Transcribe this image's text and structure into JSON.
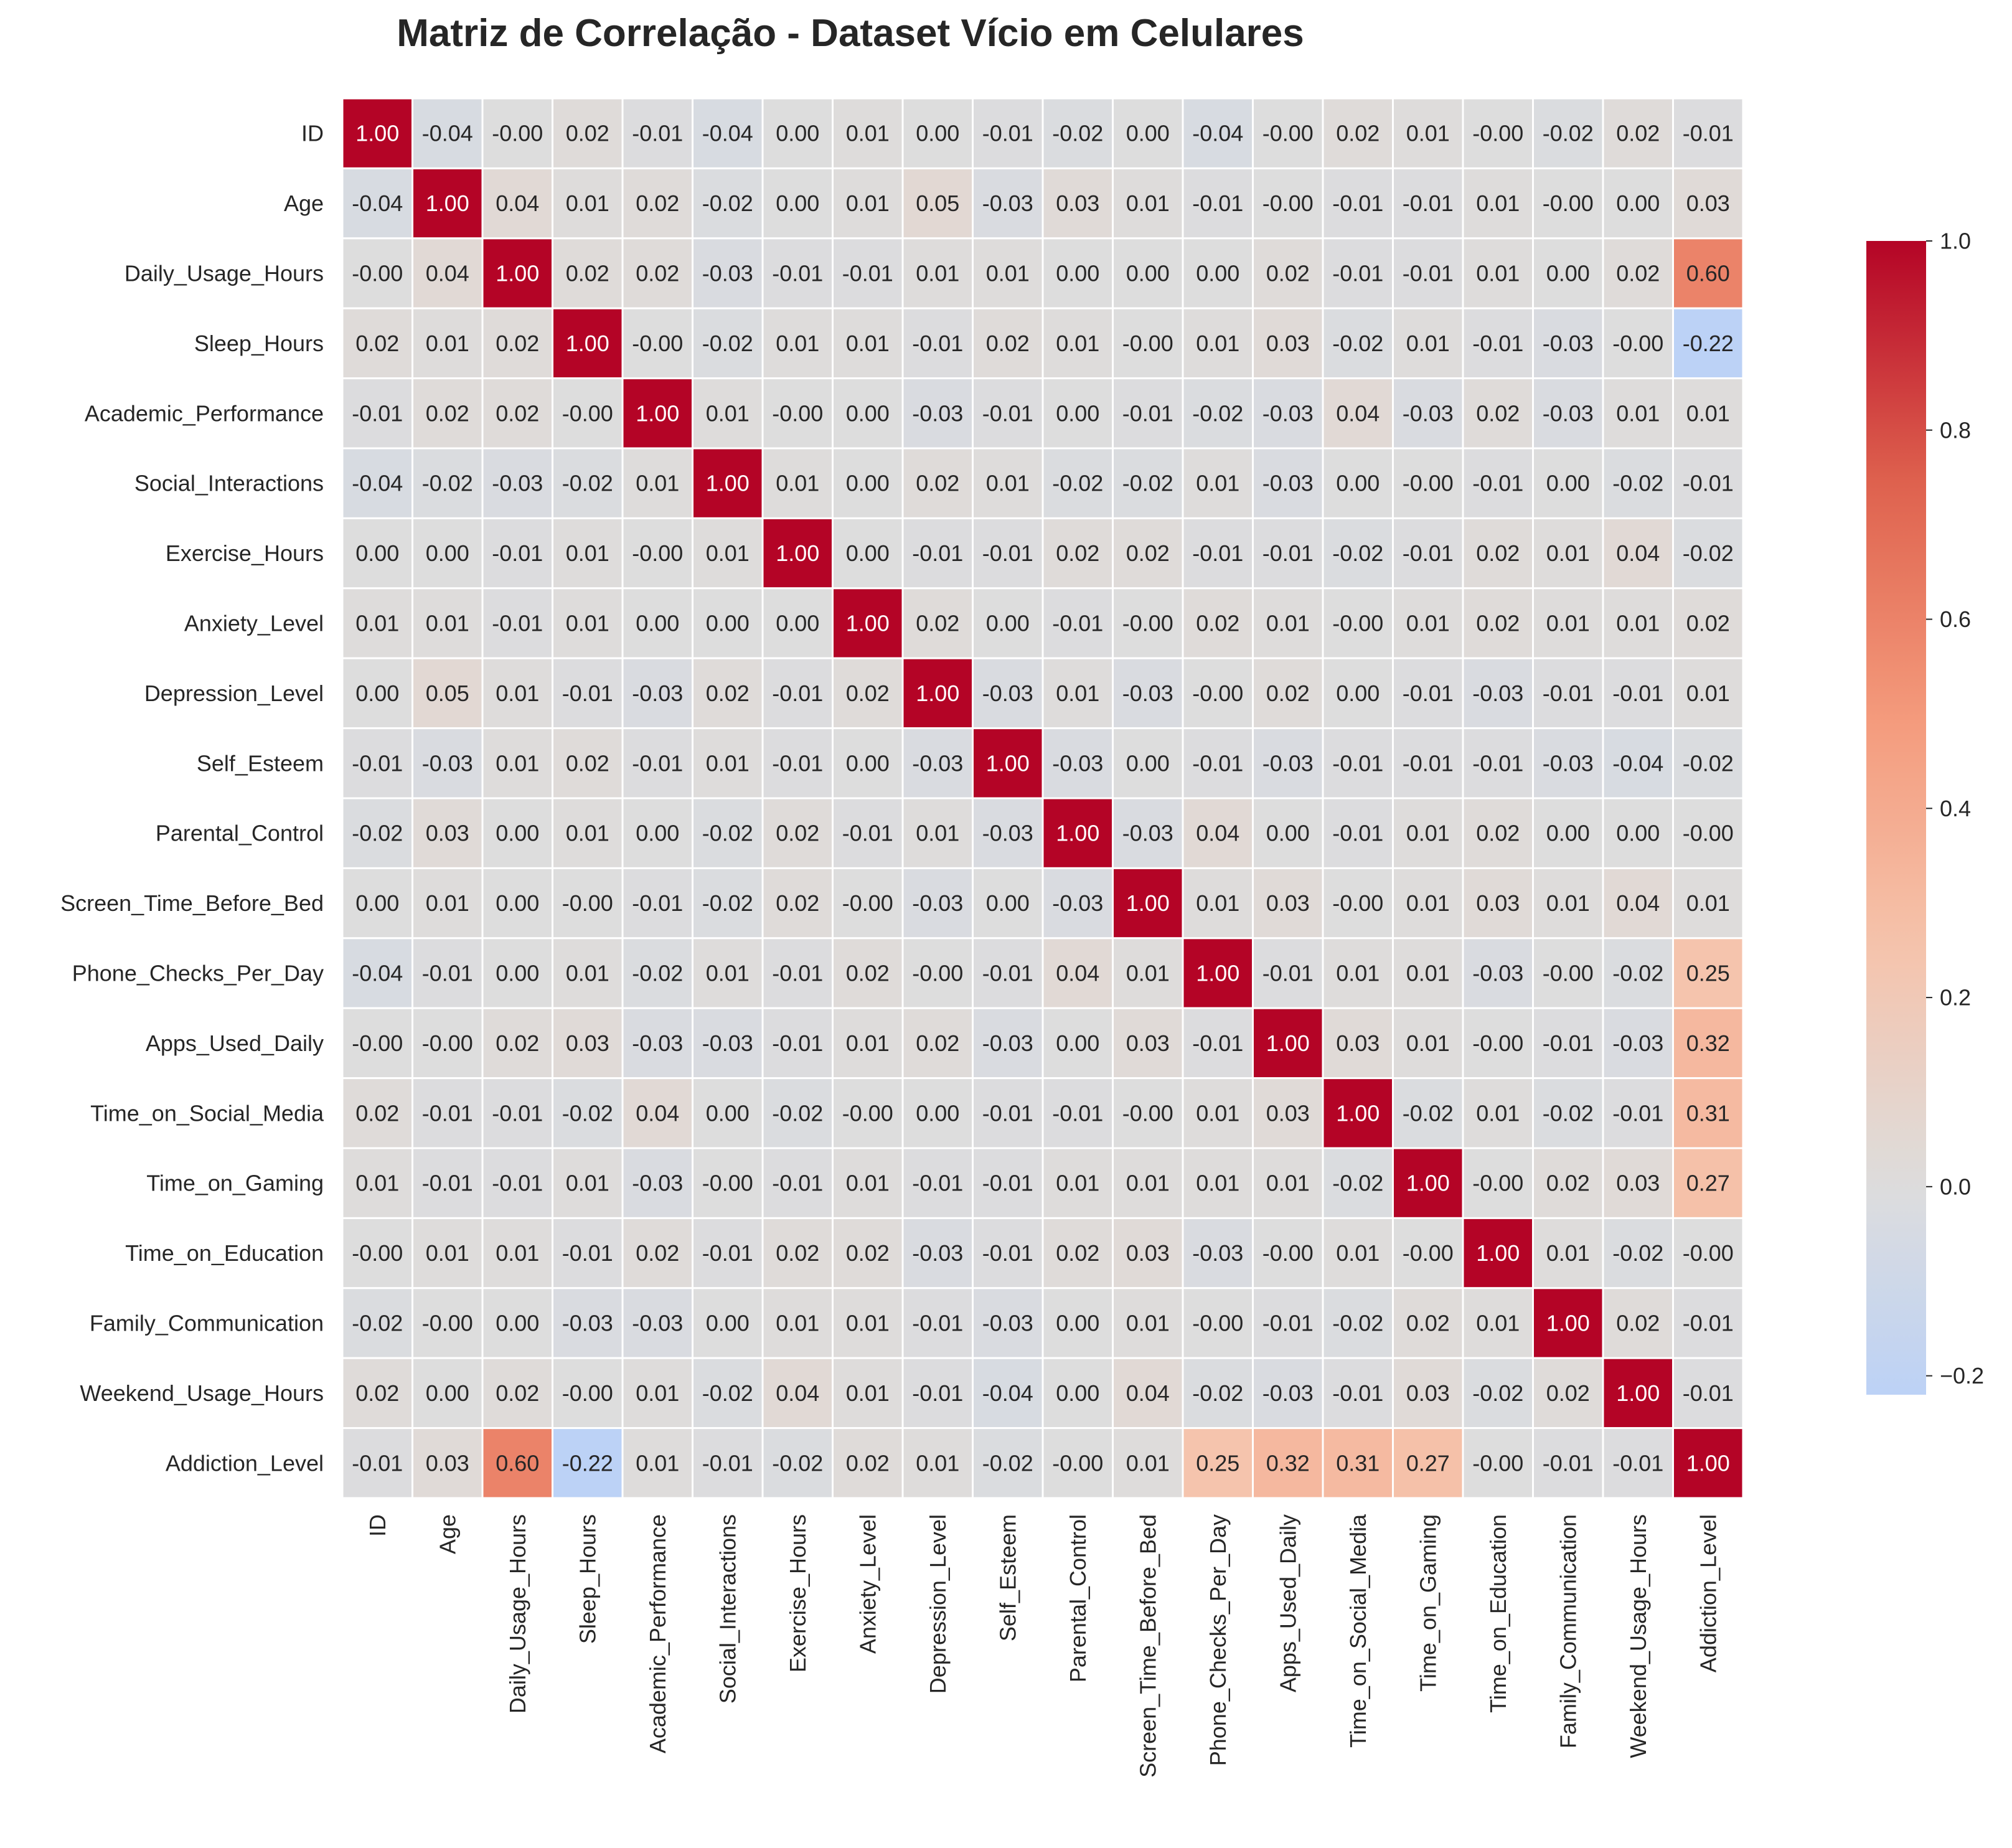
{
  "chart_data": {
    "type": "heatmap",
    "title": "Matriz de Correlação - Dataset Vício em Celulares",
    "variables": [
      "ID",
      "Age",
      "Daily_Usage_Hours",
      "Sleep_Hours",
      "Academic_Performance",
      "Social_Interactions",
      "Exercise_Hours",
      "Anxiety_Level",
      "Depression_Level",
      "Self_Esteem",
      "Parental_Control",
      "Screen_Time_Before_Bed",
      "Phone_Checks_Per_Day",
      "Apps_Used_Daily",
      "Time_on_Social_Media",
      "Time_on_Gaming",
      "Time_on_Education",
      "Family_Communication",
      "Weekend_Usage_Hours",
      "Addiction_Level"
    ],
    "labels": [
      [
        "1.00",
        "-0.04",
        "-0.00",
        "0.02",
        "-0.01",
        "-0.04",
        "0.00",
        "0.01",
        "0.00",
        "-0.01",
        "-0.02",
        "0.00",
        "-0.04",
        "-0.00",
        "0.02",
        "0.01",
        "-0.00",
        "-0.02",
        "0.02",
        "-0.01"
      ],
      [
        "-0.04",
        "1.00",
        "0.04",
        "0.01",
        "0.02",
        "-0.02",
        "0.00",
        "0.01",
        "0.05",
        "-0.03",
        "0.03",
        "0.01",
        "-0.01",
        "-0.00",
        "-0.01",
        "-0.01",
        "0.01",
        "-0.00",
        "0.00",
        "0.03"
      ],
      [
        "-0.00",
        "0.04",
        "1.00",
        "0.02",
        "0.02",
        "-0.03",
        "-0.01",
        "-0.01",
        "0.01",
        "0.01",
        "0.00",
        "0.00",
        "0.00",
        "0.02",
        "-0.01",
        "-0.01",
        "0.01",
        "0.00",
        "0.02",
        "0.60"
      ],
      [
        "0.02",
        "0.01",
        "0.02",
        "1.00",
        "-0.00",
        "-0.02",
        "0.01",
        "0.01",
        "-0.01",
        "0.02",
        "0.01",
        "-0.00",
        "0.01",
        "0.03",
        "-0.02",
        "0.01",
        "-0.01",
        "-0.03",
        "-0.00",
        "-0.22"
      ],
      [
        "-0.01",
        "0.02",
        "0.02",
        "-0.00",
        "1.00",
        "0.01",
        "-0.00",
        "0.00",
        "-0.03",
        "-0.01",
        "0.00",
        "-0.01",
        "-0.02",
        "-0.03",
        "0.04",
        "-0.03",
        "0.02",
        "-0.03",
        "0.01",
        "0.01"
      ],
      [
        "-0.04",
        "-0.02",
        "-0.03",
        "-0.02",
        "0.01",
        "1.00",
        "0.01",
        "0.00",
        "0.02",
        "0.01",
        "-0.02",
        "-0.02",
        "0.01",
        "-0.03",
        "0.00",
        "-0.00",
        "-0.01",
        "0.00",
        "-0.02",
        "-0.01"
      ],
      [
        "0.00",
        "0.00",
        "-0.01",
        "0.01",
        "-0.00",
        "0.01",
        "1.00",
        "0.00",
        "-0.01",
        "-0.01",
        "0.02",
        "0.02",
        "-0.01",
        "-0.01",
        "-0.02",
        "-0.01",
        "0.02",
        "0.01",
        "0.04",
        "-0.02"
      ],
      [
        "0.01",
        "0.01",
        "-0.01",
        "0.01",
        "0.00",
        "0.00",
        "0.00",
        "1.00",
        "0.02",
        "0.00",
        "-0.01",
        "-0.00",
        "0.02",
        "0.01",
        "-0.00",
        "0.01",
        "0.02",
        "0.01",
        "0.01",
        "0.02"
      ],
      [
        "0.00",
        "0.05",
        "0.01",
        "-0.01",
        "-0.03",
        "0.02",
        "-0.01",
        "0.02",
        "1.00",
        "-0.03",
        "0.01",
        "-0.03",
        "-0.00",
        "0.02",
        "0.00",
        "-0.01",
        "-0.03",
        "-0.01",
        "-0.01",
        "0.01"
      ],
      [
        "-0.01",
        "-0.03",
        "0.01",
        "0.02",
        "-0.01",
        "0.01",
        "-0.01",
        "0.00",
        "-0.03",
        "1.00",
        "-0.03",
        "0.00",
        "-0.01",
        "-0.03",
        "-0.01",
        "-0.01",
        "-0.01",
        "-0.03",
        "-0.04",
        "-0.02"
      ],
      [
        "-0.02",
        "0.03",
        "0.00",
        "0.01",
        "0.00",
        "-0.02",
        "0.02",
        "-0.01",
        "0.01",
        "-0.03",
        "1.00",
        "-0.03",
        "0.04",
        "0.00",
        "-0.01",
        "0.01",
        "0.02",
        "0.00",
        "0.00",
        "-0.00"
      ],
      [
        "0.00",
        "0.01",
        "0.00",
        "-0.00",
        "-0.01",
        "-0.02",
        "0.02",
        "-0.00",
        "-0.03",
        "0.00",
        "-0.03",
        "1.00",
        "0.01",
        "0.03",
        "-0.00",
        "0.01",
        "0.03",
        "0.01",
        "0.04",
        "0.01"
      ],
      [
        "-0.04",
        "-0.01",
        "0.00",
        "0.01",
        "-0.02",
        "0.01",
        "-0.01",
        "0.02",
        "-0.00",
        "-0.01",
        "0.04",
        "0.01",
        "1.00",
        "-0.01",
        "0.01",
        "0.01",
        "-0.03",
        "-0.00",
        "-0.02",
        "0.25"
      ],
      [
        "-0.00",
        "-0.00",
        "0.02",
        "0.03",
        "-0.03",
        "-0.03",
        "-0.01",
        "0.01",
        "0.02",
        "-0.03",
        "0.00",
        "0.03",
        "-0.01",
        "1.00",
        "0.03",
        "0.01",
        "-0.00",
        "-0.01",
        "-0.03",
        "0.32"
      ],
      [
        "0.02",
        "-0.01",
        "-0.01",
        "-0.02",
        "0.04",
        "0.00",
        "-0.02",
        "-0.00",
        "0.00",
        "-0.01",
        "-0.01",
        "-0.00",
        "0.01",
        "0.03",
        "1.00",
        "-0.02",
        "0.01",
        "-0.02",
        "-0.01",
        "0.31"
      ],
      [
        "0.01",
        "-0.01",
        "-0.01",
        "0.01",
        "-0.03",
        "-0.00",
        "-0.01",
        "0.01",
        "-0.01",
        "-0.01",
        "0.01",
        "0.01",
        "0.01",
        "0.01",
        "-0.02",
        "1.00",
        "-0.00",
        "0.02",
        "0.03",
        "0.27"
      ],
      [
        "-0.00",
        "0.01",
        "0.01",
        "-0.01",
        "0.02",
        "-0.01",
        "0.02",
        "0.02",
        "-0.03",
        "-0.01",
        "0.02",
        "0.03",
        "-0.03",
        "-0.00",
        "0.01",
        "-0.00",
        "1.00",
        "0.01",
        "-0.02",
        "-0.00"
      ],
      [
        "-0.02",
        "-0.00",
        "0.00",
        "-0.03",
        "-0.03",
        "0.00",
        "0.01",
        "0.01",
        "-0.01",
        "-0.03",
        "0.00",
        "0.01",
        "-0.00",
        "-0.01",
        "-0.02",
        "0.02",
        "0.01",
        "1.00",
        "0.02",
        "-0.01"
      ],
      [
        "0.02",
        "0.00",
        "0.02",
        "-0.00",
        "0.01",
        "-0.02",
        "0.04",
        "0.01",
        "-0.01",
        "-0.04",
        "0.00",
        "0.04",
        "-0.02",
        "-0.03",
        "-0.01",
        "0.03",
        "-0.02",
        "0.02",
        "1.00",
        "-0.01"
      ],
      [
        "-0.01",
        "0.03",
        "0.60",
        "-0.22",
        "0.01",
        "-0.01",
        "-0.02",
        "0.02",
        "0.01",
        "-0.02",
        "-0.00",
        "0.01",
        "0.25",
        "0.32",
        "0.31",
        "0.27",
        "-0.00",
        "-0.01",
        "-0.01",
        "1.00"
      ]
    ],
    "colorbar": {
      "colormap": "coolwarm",
      "center": 0,
      "range": [
        -0.22,
        1.0
      ],
      "ticks": [
        "1.0",
        "0.8",
        "0.6",
        "0.4",
        "0.2",
        "0.0",
        "−0.2"
      ]
    },
    "cell_gridlines": true,
    "colors": {
      "text_dark": "#262626",
      "text_light": "#ffffff",
      "gridline": "#ffffff"
    }
  }
}
